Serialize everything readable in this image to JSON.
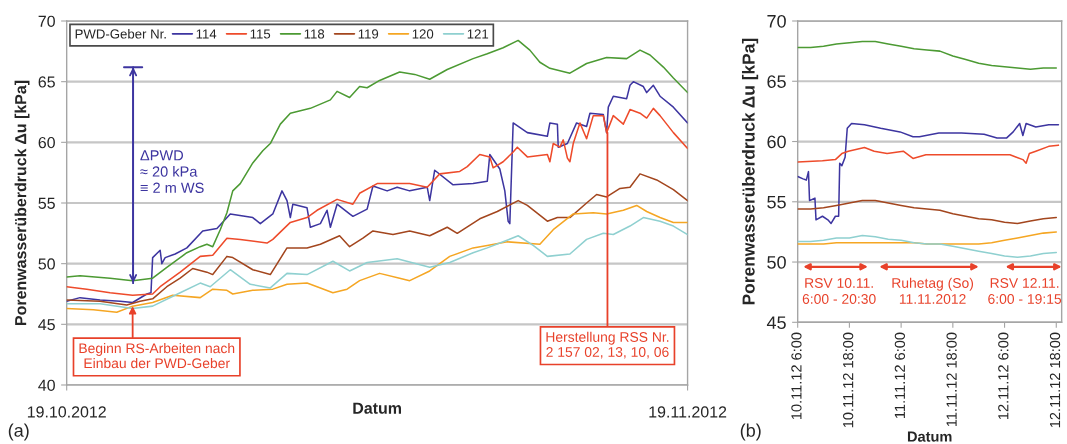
{
  "chart_data": [
    {
      "type": "line",
      "xlabel": "Datum",
      "ylabel": "Porenwasserüberdruck Δu [kPa]",
      "xlim": [
        "2012-10-19T00:00",
        "2012-11-19T00:00"
      ],
      "ylim": [
        40,
        70
      ],
      "xticks": [
        {
          "value": "2012-10-19T00:00",
          "label": "19.10.2012"
        },
        {
          "value": "2012-11-19T00:00",
          "label": "19.11.2012"
        }
      ],
      "yticks": [
        40,
        45,
        50,
        55,
        60,
        65,
        70
      ],
      "grid": "y",
      "legend": "top left",
      "legend_title": "PWD-Geber Nr.",
      "series": [
        {
          "name": "114",
          "color": "#3d35a0",
          "x": [
            "2012-10-19T00:00",
            "2012-10-19T16:00",
            "2012-10-20T16:00",
            "2012-10-21T16:00",
            "2012-10-22T07:00",
            "2012-10-23T00:00",
            "2012-10-23T05:00",
            "2012-10-23T07:00",
            "2012-10-23T16:00",
            "2012-10-23T18:00",
            "2012-10-23T22:00",
            "2012-10-24T10:00",
            "2012-10-25T00:00",
            "2012-10-25T19:00",
            "2012-10-26T12:00",
            "2012-10-27T04:00",
            "2012-10-28T07:00",
            "2012-10-28T16:00",
            "2012-10-29T07:00",
            "2012-10-29T18:00",
            "2012-10-30T00:00",
            "2012-10-30T04:00",
            "2012-10-30T07:00",
            "2012-10-31T00:00",
            "2012-10-31T04:00",
            "2012-10-31T16:00",
            "2012-11-01T00:00",
            "2012-11-01T04:00",
            "2012-11-01T12:00",
            "2012-11-02T03:00",
            "2012-11-02T07:00",
            "2012-11-03T00:00",
            "2012-11-03T07:00",
            "2012-11-04T00:00",
            "2012-11-04T12:00",
            "2012-11-05T03:00",
            "2012-11-06T00:00",
            "2012-11-06T03:00",
            "2012-11-06T09:00",
            "2012-11-07T07:00",
            "2012-11-08T07:00",
            "2012-11-09T00:00",
            "2012-11-09T03:00",
            "2012-11-09T15:00",
            "2012-11-09T21:00",
            "2012-11-10T01:00",
            "2012-11-10T03:00",
            "2012-11-10T07:00",
            "2012-11-11T00:00",
            "2012-11-12T00:00",
            "2012-11-12T03:00",
            "2012-11-12T12:00",
            "2012-11-12T13:00",
            "2012-11-13T00:00",
            "2012-11-13T11:00",
            "2012-11-13T23:00",
            "2012-11-14T03:00",
            "2012-11-14T19:00",
            "2012-11-14T23:00",
            "2012-11-15T01:00",
            "2012-11-15T07:00",
            "2012-11-15T23:00",
            "2012-11-16T03:00",
            "2012-11-16T07:00",
            "2012-11-16T19:00",
            "2012-11-16T23:00",
            "2012-11-17T07:00",
            "2012-11-17T15:00",
            "2012-11-18T07:00",
            "2012-11-19T00:00"
          ],
          "values": [
            46.9,
            47.2,
            47.0,
            46.9,
            46.8,
            47.5,
            47.6,
            50.5,
            51.1,
            50.0,
            50.5,
            50.8,
            51.3,
            52.7,
            52.9,
            54.1,
            53.8,
            53.3,
            54.1,
            56.0,
            55.2,
            53.8,
            54.9,
            54.6,
            53.0,
            53.3,
            54.4,
            53.0,
            54.9,
            54.1,
            53.9,
            54.5,
            56.4,
            56.0,
            56.3,
            56.0,
            56.3,
            55.2,
            57.7,
            56.5,
            56.6,
            56.8,
            59.0,
            57.8,
            56.0,
            53.5,
            53.3,
            61.6,
            60.8,
            60.5,
            61.6,
            61.5,
            59.6,
            59.9,
            61.6,
            61.3,
            62.4,
            62.3,
            60.8,
            62.9,
            63.8,
            63.6,
            64.7,
            65.0,
            64.6,
            64.1,
            64.7,
            63.8,
            62.9,
            61.6
          ]
        },
        {
          "name": "115",
          "color": "#ee4b2b",
          "x": [
            "2012-10-19T00:00",
            "2012-10-20T00:00",
            "2012-10-21T04:00",
            "2012-10-22T07:00",
            "2012-10-23T07:00",
            "2012-10-23T16:00",
            "2012-10-24T16:00",
            "2012-10-25T16:00",
            "2012-10-26T07:00",
            "2012-10-27T00:00",
            "2012-10-27T16:00",
            "2012-10-29T00:00",
            "2012-10-29T07:00",
            "2012-10-30T04:00",
            "2012-10-31T00:00",
            "2012-10-31T12:00",
            "2012-11-01T12:00",
            "2012-11-02T07:00",
            "2012-11-02T15:00",
            "2012-11-03T12:00",
            "2012-11-05T03:00",
            "2012-11-06T00:00",
            "2012-11-06T15:00",
            "2012-11-07T15:00",
            "2012-11-08T00:00",
            "2012-11-08T15:00",
            "2012-11-09T03:00",
            "2012-11-09T07:00",
            "2012-11-09T19:00",
            "2012-11-10T07:00",
            "2012-11-10T12:00",
            "2012-11-11T00:00",
            "2012-11-12T00:00",
            "2012-11-12T03:00",
            "2012-11-12T07:00",
            "2012-11-12T15:00",
            "2012-11-12T19:00",
            "2012-11-13T00:00",
            "2012-11-13T03:00",
            "2012-11-13T07:00",
            "2012-11-13T15:00",
            "2012-11-13T23:00",
            "2012-11-14T07:00",
            "2012-11-14T19:00",
            "2012-11-14T23:00",
            "2012-11-15T07:00",
            "2012-11-15T19:00",
            "2012-11-16T03:00",
            "2012-11-16T15:00",
            "2012-11-16T23:00",
            "2012-11-17T07:00",
            "2012-11-17T15:00",
            "2012-11-18T07:00",
            "2012-11-19T00:00"
          ],
          "values": [
            48.1,
            47.9,
            47.6,
            47.4,
            47.5,
            48.1,
            49.3,
            50.6,
            50.7,
            52.1,
            52.0,
            51.7,
            52.0,
            53.4,
            53.8,
            54.4,
            55.3,
            54.9,
            55.8,
            56.6,
            56.6,
            56.3,
            57.4,
            57.6,
            58.0,
            59.0,
            58.8,
            57.9,
            58.4,
            59.2,
            59.6,
            58.8,
            59.0,
            58.4,
            59.9,
            59.6,
            60.2,
            58.7,
            58.4,
            59.9,
            61.6,
            60.3,
            62.2,
            62.2,
            60.8,
            62.2,
            61.5,
            62.7,
            62.4,
            62.0,
            62.8,
            62.2,
            60.8,
            59.5
          ]
        },
        {
          "name": "118",
          "color": "#4c9a33",
          "x": [
            "2012-10-19T00:00",
            "2012-10-19T16:00",
            "2012-10-21T04:00",
            "2012-10-22T07:00",
            "2012-10-23T07:00",
            "2012-10-24T00:00",
            "2012-10-25T00:00",
            "2012-10-25T16:00",
            "2012-10-26T00:00",
            "2012-10-26T07:00",
            "2012-10-26T16:00",
            "2012-10-27T00:00",
            "2012-10-27T07:00",
            "2012-10-27T16:00",
            "2012-10-28T07:00",
            "2012-10-28T19:00",
            "2012-10-29T04:00",
            "2012-10-29T16:00",
            "2012-10-30T04:00",
            "2012-10-31T04:00",
            "2012-11-01T04:00",
            "2012-11-01T12:00",
            "2012-11-02T03:00",
            "2012-11-02T15:00",
            "2012-11-03T00:00",
            "2012-11-03T15:00",
            "2012-11-04T15:00",
            "2012-11-05T09:00",
            "2012-11-06T03:00",
            "2012-11-07T00:00",
            "2012-11-08T07:00",
            "2012-11-09T00:00",
            "2012-11-09T19:00",
            "2012-11-10T13:00",
            "2012-11-11T03:00",
            "2012-11-11T15:00",
            "2012-11-12T03:00",
            "2012-11-13T03:00",
            "2012-11-13T23:00",
            "2012-11-14T23:00",
            "2012-11-15T23:00",
            "2012-11-16T15:00",
            "2012-11-17T03:00",
            "2012-11-17T19:00",
            "2012-11-18T07:00",
            "2012-11-19T00:00"
          ],
          "values": [
            48.9,
            49.0,
            48.8,
            48.6,
            48.8,
            49.7,
            50.9,
            51.4,
            51.6,
            51.4,
            52.8,
            54.2,
            56.0,
            56.6,
            58.3,
            59.3,
            59.9,
            61.5,
            62.4,
            62.8,
            63.5,
            64.2,
            63.7,
            64.6,
            64.5,
            65.1,
            65.8,
            65.6,
            65.2,
            66.0,
            66.9,
            67.3,
            67.8,
            68.4,
            67.6,
            66.6,
            66.1,
            65.7,
            66.5,
            67.0,
            66.9,
            67.6,
            67.2,
            66.2,
            65.3,
            64.1
          ]
        },
        {
          "name": "119",
          "color": "#a3461e",
          "x": [
            "2012-10-19T00:00",
            "2012-10-20T16:00",
            "2012-10-22T00:00",
            "2012-10-22T16:00",
            "2012-10-23T07:00",
            "2012-10-24T00:00",
            "2012-10-24T16:00",
            "2012-10-25T07:00",
            "2012-10-26T00:00",
            "2012-10-26T07:00",
            "2012-10-27T00:00",
            "2012-10-27T07:00",
            "2012-10-28T07:00",
            "2012-10-29T04:00",
            "2012-10-30T00:00",
            "2012-10-31T00:00",
            "2012-10-31T16:00",
            "2012-11-01T15:00",
            "2012-11-02T03:00",
            "2012-11-02T19:00",
            "2012-11-03T07:00",
            "2012-11-04T07:00",
            "2012-11-05T03:00",
            "2012-11-06T03:00",
            "2012-11-07T00:00",
            "2012-11-07T12:00",
            "2012-11-08T15:00",
            "2012-11-09T12:00",
            "2012-11-10T13:00",
            "2012-11-11T00:00",
            "2012-11-12T00:00",
            "2012-11-12T12:00",
            "2012-11-13T03:00",
            "2012-11-13T23:00",
            "2012-11-14T11:00",
            "2012-11-14T23:00",
            "2012-11-15T15:00",
            "2012-11-16T03:00",
            "2012-11-16T15:00",
            "2012-11-17T11:00",
            "2012-11-18T07:00",
            "2012-11-19T00:00"
          ],
          "values": [
            47.0,
            46.9,
            46.6,
            46.9,
            47.1,
            48.1,
            48.8,
            49.6,
            49.3,
            49.1,
            50.6,
            50.5,
            49.5,
            49.1,
            51.3,
            51.3,
            51.6,
            52.3,
            51.4,
            52.1,
            52.7,
            52.4,
            52.7,
            52.3,
            53.0,
            52.5,
            53.7,
            54.3,
            55.2,
            54.8,
            53.5,
            53.8,
            53.8,
            55.0,
            55.7,
            55.5,
            56.2,
            56.3,
            57.4,
            56.9,
            56.1,
            55.2
          ]
        },
        {
          "name": "120",
          "color": "#f5a623",
          "x": [
            "2012-10-19T00:00",
            "2012-10-20T08:00",
            "2012-10-21T12:00",
            "2012-10-22T07:00",
            "2012-10-23T07:00",
            "2012-10-24T07:00",
            "2012-10-25T16:00",
            "2012-10-26T07:00",
            "2012-10-27T00:00",
            "2012-10-27T07:00",
            "2012-10-28T07:00",
            "2012-10-29T07:00",
            "2012-10-30T00:00",
            "2012-10-31T00:00",
            "2012-10-31T16:00",
            "2012-11-01T07:00",
            "2012-11-02T00:00",
            "2012-11-02T15:00",
            "2012-11-03T15:00",
            "2012-11-04T15:00",
            "2012-11-05T03:00",
            "2012-11-06T03:00",
            "2012-11-07T03:00",
            "2012-11-08T07:00",
            "2012-11-09T00:00",
            "2012-11-10T00:00",
            "2012-11-11T15:00",
            "2012-11-12T07:00",
            "2012-11-13T07:00",
            "2012-11-14T07:00",
            "2012-11-14T23:00",
            "2012-11-15T19:00",
            "2012-11-16T11:00",
            "2012-11-16T23:00",
            "2012-11-17T15:00",
            "2012-11-18T07:00",
            "2012-11-19T00:00"
          ],
          "values": [
            46.3,
            46.2,
            46.0,
            46.5,
            46.8,
            47.4,
            47.2,
            47.9,
            47.8,
            47.5,
            47.8,
            47.9,
            48.3,
            48.4,
            48.0,
            47.6,
            47.9,
            48.6,
            49.2,
            48.8,
            48.6,
            49.4,
            50.6,
            51.3,
            51.5,
            51.8,
            51.6,
            52.8,
            54.1,
            54.2,
            54.1,
            54.4,
            54.8,
            54.3,
            53.8,
            53.4,
            53.4
          ]
        },
        {
          "name": "121",
          "color": "#8fd0d0",
          "x": [
            "2012-10-19T00:00",
            "2012-10-20T16:00",
            "2012-10-22T07:00",
            "2012-10-23T07:00",
            "2012-10-24T16:00",
            "2012-10-25T16:00",
            "2012-10-26T04:00",
            "2012-10-27T04:00",
            "2012-10-28T04:00",
            "2012-10-29T04:00",
            "2012-10-30T00:00",
            "2012-10-31T00:00",
            "2012-11-01T07:00",
            "2012-11-02T03:00",
            "2012-11-03T00:00",
            "2012-11-04T12:00",
            "2012-11-06T03:00",
            "2012-11-07T03:00",
            "2012-11-08T07:00",
            "2012-11-09T00:00",
            "2012-11-09T19:00",
            "2012-11-10T13:00",
            "2012-11-11T07:00",
            "2012-11-12T00:00",
            "2012-11-13T03:00",
            "2012-11-13T23:00",
            "2012-11-14T19:00",
            "2012-11-15T07:00",
            "2012-11-16T03:00",
            "2012-11-16T19:00",
            "2012-11-17T15:00",
            "2012-11-18T07:00",
            "2012-11-19T00:00"
          ],
          "values": [
            46.7,
            46.7,
            46.3,
            46.5,
            47.6,
            48.4,
            48.1,
            49.5,
            48.3,
            48.0,
            49.2,
            49.1,
            50.2,
            49.4,
            50.1,
            50.4,
            49.7,
            50.1,
            50.9,
            51.3,
            51.8,
            52.3,
            51.5,
            50.6,
            50.8,
            52.0,
            52.5,
            52.4,
            53.1,
            53.8,
            53.5,
            53.1,
            52.4
          ]
        }
      ],
      "annotations": [
        "(a)",
        "ΔPWD\n≈ 20 kPa\n≡ 2 m WS",
        {
          "text": "Beginn RS-Arbeiten nach\nEinbau der PWD-Geber",
          "x": "2012-10-22T07:00",
          "y": 46.5
        },
        {
          "text": "Herstellung RSS Nr.\n2 157 02, 13, 10, 06",
          "x": "2012-11-15T00:00",
          "y": 60.8
        }
      ]
    },
    {
      "type": "line",
      "xlabel": "Datum",
      "ylabel": "Porenwasserüberdruck Δu [kPa]",
      "xlim": [
        "2012-11-10T06:00",
        "2012-11-12T19:15"
      ],
      "ylim": [
        45,
        70
      ],
      "xticks": [
        {
          "value": "2012-11-10T06:00",
          "label": "10.11.12 6:00"
        },
        {
          "value": "2012-11-10T18:00",
          "label": "10.11.12 18:00"
        },
        {
          "value": "2012-11-11T06:00",
          "label": "11.11.12 6:00"
        },
        {
          "value": "2012-11-11T18:00",
          "label": "11.11.12 18:00"
        },
        {
          "value": "2012-11-12T06:00",
          "label": "12.11.12 6:00"
        },
        {
          "value": "2012-11-12T18:00",
          "label": "12.11.12 18:00"
        }
      ],
      "yticks": [
        45,
        50,
        55,
        60,
        65,
        70
      ],
      "grid": "y",
      "x": [
        "2012-11-10T06:00",
        "2012-11-10T09:00",
        "2012-11-10T12:00",
        "2012-11-10T15:00",
        "2012-11-10T18:00",
        "2012-11-10T21:00",
        "2012-11-11T00:00",
        "2012-11-11T03:00",
        "2012-11-11T06:00",
        "2012-11-11T09:00",
        "2012-11-11T12:00",
        "2012-11-11T15:00",
        "2012-11-11T18:00",
        "2012-11-11T21:00",
        "2012-11-12T00:00",
        "2012-11-12T03:00",
        "2012-11-12T06:00",
        "2012-11-12T09:00",
        "2012-11-12T12:00",
        "2012-11-12T15:00",
        "2012-11-12T18:00"
      ],
      "series": [
        {
          "color": "#3d35a0",
          "x": [
            "2012-11-10T06:00",
            "2012-11-10T07:15",
            "2012-11-10T08:00",
            "2012-11-10T08:30",
            "2012-11-10T08:45",
            "2012-11-10T10:00",
            "2012-11-10T10:15",
            "2012-11-10T11:45",
            "2012-11-10T13:00",
            "2012-11-10T13:45",
            "2012-11-10T14:45",
            "2012-11-10T15:30",
            "2012-11-10T15:45",
            "2012-11-10T16:15",
            "2012-11-10T17:00",
            "2012-11-10T17:30",
            "2012-11-10T18:30",
            "2012-11-10T21:30",
            "2012-11-11T01:15",
            "2012-11-11T05:45",
            "2012-11-11T08:45",
            "2012-11-11T10:15",
            "2012-11-11T14:45",
            "2012-11-11T20:00",
            "2012-11-12T01:15",
            "2012-11-12T04:15",
            "2012-11-12T06:30",
            "2012-11-12T08:00",
            "2012-11-12T09:30",
            "2012-11-12T10:15",
            "2012-11-12T11:00",
            "2012-11-12T13:15",
            "2012-11-12T16:15",
            "2012-11-12T18:30"
          ],
          "values": [
            57.1,
            56.9,
            56.8,
            57.5,
            55.1,
            55.3,
            53.5,
            53.8,
            53.5,
            53.2,
            53.8,
            53.8,
            58.2,
            58.0,
            58.7,
            61.1,
            61.5,
            61.4,
            61.1,
            60.8,
            60.4,
            60.4,
            60.7,
            60.7,
            60.6,
            60.3,
            60.3,
            60.8,
            61.5,
            60.5,
            61.5,
            61.2,
            61.4,
            61.4
          ]
        },
        {
          "color": "#ee4b2b",
          "x": [
            "2012-11-10T06:00",
            "2012-11-10T11:45",
            "2012-11-10T14:45",
            "2012-11-10T16:15",
            "2012-11-10T17:45",
            "2012-11-10T21:30",
            "2012-11-10T23:45",
            "2012-11-11T02:45",
            "2012-11-11T06:30",
            "2012-11-11T08:45",
            "2012-11-11T11:45",
            "2012-11-11T17:45",
            "2012-11-12T01:15",
            "2012-11-12T07:15",
            "2012-11-12T08:45",
            "2012-11-12T10:15",
            "2012-11-12T11:00",
            "2012-11-12T11:45",
            "2012-11-12T13:15",
            "2012-11-12T16:15",
            "2012-11-12T18:30"
          ],
          "values": [
            58.3,
            58.4,
            58.5,
            59.0,
            59.2,
            59.5,
            59.2,
            59.0,
            59.2,
            58.6,
            58.9,
            58.9,
            58.9,
            58.9,
            58.7,
            58.5,
            58.2,
            59.0,
            59.2,
            59.6,
            59.7
          ]
        },
        {
          "color": "#4c9a33",
          "values": [
            67.8,
            67.8,
            67.9,
            68.1,
            68.2,
            68.3,
            68.3,
            68.1,
            67.9,
            67.7,
            67.6,
            67.5,
            67.1,
            66.8,
            66.5,
            66.3,
            66.2,
            66.1,
            66.0,
            66.1,
            66.1
          ]
        },
        {
          "color": "#a3461e",
          "values": [
            54.4,
            54.4,
            54.5,
            54.7,
            54.9,
            55.1,
            55.1,
            54.9,
            54.7,
            54.5,
            54.4,
            54.3,
            54.0,
            53.8,
            53.6,
            53.5,
            53.3,
            53.2,
            53.4,
            53.6,
            53.7
          ]
        },
        {
          "color": "#f5a623",
          "values": [
            51.5,
            51.5,
            51.5,
            51.6,
            51.6,
            51.6,
            51.6,
            51.6,
            51.6,
            51.6,
            51.5,
            51.5,
            51.5,
            51.5,
            51.5,
            51.6,
            51.8,
            52.0,
            52.2,
            52.4,
            52.5
          ]
        },
        {
          "color": "#8fd0d0",
          "values": [
            51.7,
            51.7,
            51.8,
            52.0,
            52.0,
            52.2,
            52.1,
            51.9,
            51.8,
            51.6,
            51.5,
            51.5,
            51.3,
            51.1,
            50.9,
            50.7,
            50.5,
            50.4,
            50.5,
            50.7,
            50.8
          ]
        }
      ],
      "annotations": [
        "(b)",
        "RSV 10.11.\n6:00 - 20:30",
        "Ruhetag (So)\n11.11.2012",
        "RSV 12.11.\n6:00 - 19:15"
      ]
    }
  ]
}
